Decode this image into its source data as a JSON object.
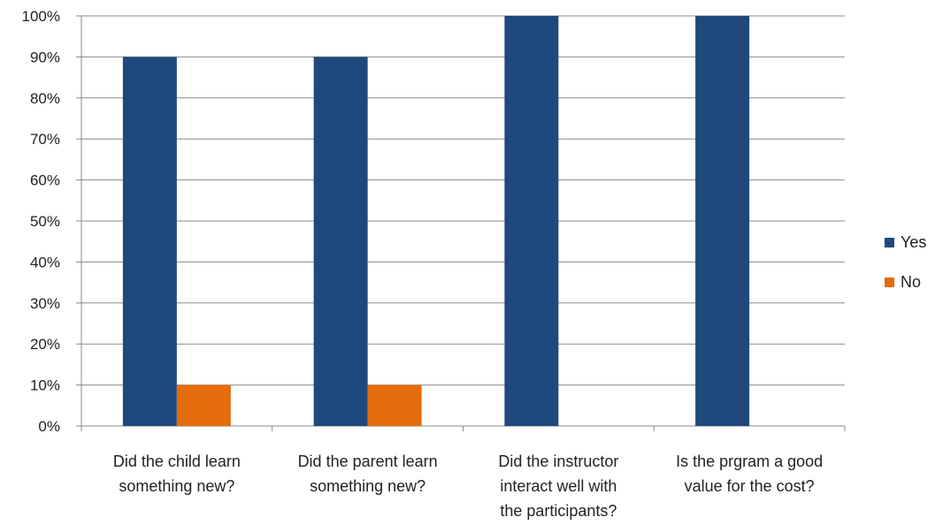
{
  "chart_data": {
    "type": "bar",
    "title": "",
    "xlabel": "",
    "ylabel": "",
    "categories": [
      [
        "Did the child learn",
        "something new?"
      ],
      [
        "Did the parent learn",
        "something new?"
      ],
      [
        "Did the instructor",
        "interact well with",
        "the participants?"
      ],
      [
        "Is the prgram a good",
        "value for the cost?"
      ]
    ],
    "series": [
      {
        "name": "Yes",
        "color": "#1F497D",
        "values": [
          90,
          90,
          100,
          100
        ]
      },
      {
        "name": "No",
        "color": "#E46C0A",
        "values": [
          10,
          10,
          0,
          0
        ]
      }
    ],
    "ylim": [
      0,
      100
    ],
    "yticks": [
      "0%",
      "10%",
      "20%",
      "30%",
      "40%",
      "50%",
      "60%",
      "70%",
      "80%",
      "90%",
      "100%"
    ],
    "grid": true,
    "legend_position": "right"
  }
}
